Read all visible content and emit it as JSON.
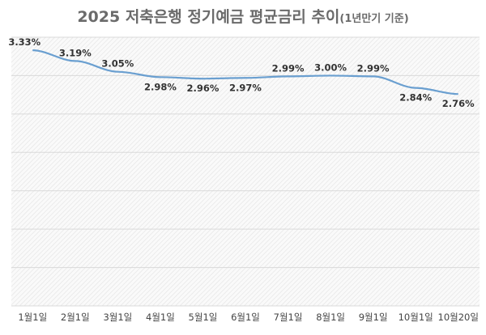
{
  "chart_data": {
    "type": "line",
    "title": "2025 저축은행 정기예금 평균금리 추이",
    "subtitle": "(1년만기 기준)",
    "categories": [
      "1월1일",
      "2월1일",
      "3월1일",
      "4월1일",
      "5월1일",
      "6월1일",
      "7월1일",
      "8월1일",
      "9월1일",
      "10월1일",
      "10월20일"
    ],
    "values": [
      3.33,
      3.19,
      3.05,
      2.98,
      2.96,
      2.97,
      2.99,
      3.0,
      2.99,
      2.84,
      2.76
    ],
    "labels": [
      "3.33%",
      "3.19%",
      "3.05%",
      "2.98%",
      "2.96%",
      "2.97%",
      "2.99%",
      "3.00%",
      "2.99%",
      "2.84%",
      "2.76%"
    ],
    "label_pos": [
      "above",
      "above",
      "above",
      "below",
      "below",
      "below",
      "above",
      "above",
      "above",
      "below",
      "below"
    ],
    "ylim": [
      0,
      3.5
    ],
    "grid_step": 0.5,
    "xlabel": "",
    "ylabel": "",
    "grid": true,
    "line_color": "#6a9fd0"
  }
}
